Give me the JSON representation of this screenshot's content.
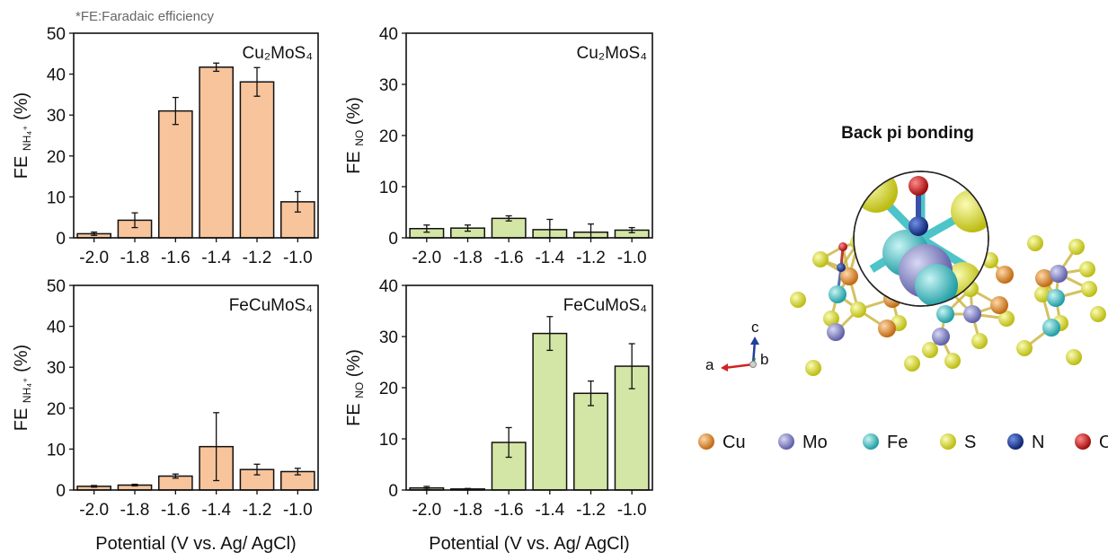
{
  "footnote": "*FE:Faradaic efficiency",
  "xlabel": "Potential (V vs. Ag/ AgCl)",
  "colors": {
    "nh4_bar": "#f7c49c",
    "no_bar": "#d4e6a5",
    "bar_edge": "#111111"
  },
  "chart_data": [
    {
      "type": "bar",
      "sample_label": "Cu₂MoS₄",
      "ylabel": {
        "main": "FE",
        "sub": "NH₄⁺",
        "unit": "(%)"
      },
      "categories": [
        "-2.0",
        "-1.8",
        "-1.6",
        "-1.4",
        "-1.2",
        "-1.0"
      ],
      "values": [
        1.0,
        4.3,
        31.0,
        41.7,
        38.1,
        8.8
      ],
      "errors": [
        0.4,
        1.8,
        3.3,
        1.0,
        3.5,
        2.5
      ],
      "ylim": [
        0,
        50
      ],
      "yticks": [
        0,
        10,
        20,
        30,
        40,
        50
      ]
    },
    {
      "type": "bar",
      "sample_label": "Cu₂MoS₄",
      "ylabel": {
        "main": "FE",
        "sub": "NO",
        "unit": "(%)"
      },
      "categories": [
        "-2.0",
        "-1.8",
        "-1.6",
        "-1.4",
        "-1.2",
        "-1.0"
      ],
      "values": [
        1.8,
        1.9,
        3.8,
        1.6,
        1.1,
        1.5
      ],
      "errors": [
        0.7,
        0.6,
        0.5,
        2.0,
        1.6,
        0.5
      ],
      "ylim": [
        0,
        40
      ],
      "yticks": [
        0,
        10,
        20,
        30,
        40
      ]
    },
    {
      "type": "bar",
      "sample_label": "FeCuMoS₄",
      "ylabel": {
        "main": "FE",
        "sub": "NH₄⁺",
        "unit": "(%)"
      },
      "categories": [
        "-2.0",
        "-1.8",
        "-1.6",
        "-1.4",
        "-1.2",
        "-1.0"
      ],
      "values": [
        0.9,
        1.2,
        3.4,
        10.6,
        5.0,
        4.5
      ],
      "errors": [
        0.2,
        0.2,
        0.5,
        8.3,
        1.3,
        0.8
      ],
      "ylim": [
        0,
        50
      ],
      "yticks": [
        0,
        10,
        20,
        30,
        40,
        50
      ]
    },
    {
      "type": "bar",
      "sample_label": "FeCuMoS₄",
      "ylabel": {
        "main": "FE",
        "sub": "NO",
        "unit": "(%)"
      },
      "categories": [
        "-2.0",
        "-1.8",
        "-1.6",
        "-1.4",
        "-1.2",
        "-1.0"
      ],
      "values": [
        0.4,
        0.2,
        9.3,
        30.6,
        18.9,
        24.2
      ],
      "errors": [
        0.3,
        0.1,
        2.9,
        3.3,
        2.4,
        4.4
      ],
      "ylim": [
        0,
        40
      ],
      "yticks": [
        0,
        10,
        20,
        30,
        40
      ]
    }
  ],
  "structure": {
    "title": "Back pi bonding",
    "axes": {
      "a": "a",
      "b": "b",
      "c": "c"
    },
    "legend": [
      {
        "label": "Cu",
        "color": "#e08a2c"
      },
      {
        "label": "Mo",
        "color": "#8a8ac8"
      },
      {
        "label": "Fe",
        "color": "#4cc4c8"
      },
      {
        "label": "S",
        "color": "#e3e43a"
      },
      {
        "label": "N",
        "color": "#1f3f9a"
      },
      {
        "label": "O",
        "color": "#d42020"
      }
    ]
  }
}
